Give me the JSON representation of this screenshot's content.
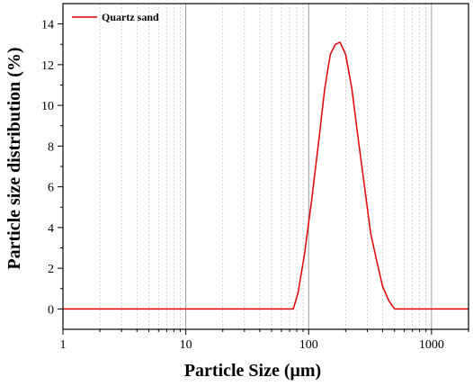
{
  "chart_data": {
    "type": "line",
    "xlabel": "Particle Size (μm)",
    "ylabel": "Particle size distribution (%)",
    "x_scale": "log",
    "xlim": [
      1,
      2000
    ],
    "ylim": [
      -1,
      15
    ],
    "x_ticks": [
      1,
      10,
      100,
      1000
    ],
    "x_tick_labels": [
      "1",
      "10",
      "100",
      "1000"
    ],
    "y_ticks": [
      0,
      2,
      4,
      6,
      8,
      10,
      12,
      14
    ],
    "y_tick_labels": [
      "0",
      "2",
      "4",
      "6",
      "8",
      "10",
      "12",
      "14"
    ],
    "grid": "vertical minor gridlines (dotted) at log subdivisions",
    "legend": "top-left",
    "series": [
      {
        "name": "Quartz sand",
        "color": "#e00000",
        "x": [
          1,
          75,
          82,
          92,
          105,
          120,
          135,
          150,
          165,
          180,
          200,
          225,
          250,
          285,
          320,
          360,
          400,
          450,
          500,
          2000
        ],
        "y": [
          0,
          0,
          0.8,
          2.6,
          5.2,
          8.1,
          10.8,
          12.5,
          13.0,
          13.1,
          12.5,
          10.8,
          8.6,
          6.0,
          3.7,
          2.3,
          1.1,
          0.4,
          0,
          0
        ]
      }
    ]
  }
}
